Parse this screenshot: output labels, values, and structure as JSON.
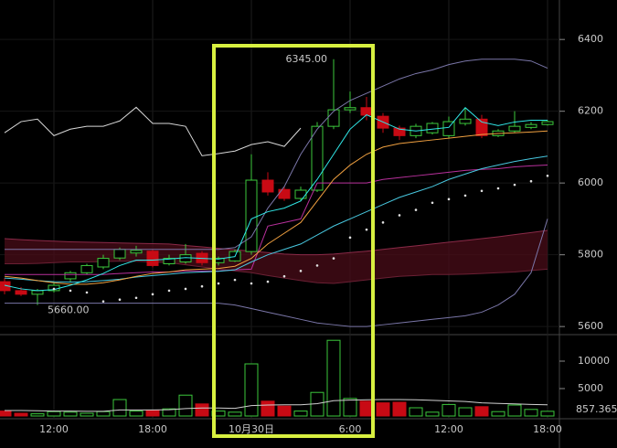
{
  "chart_data": {
    "type": "candlestick",
    "categories": [
      null,
      null,
      null,
      "12:00",
      null,
      null,
      null,
      null,
      null,
      "18:00",
      null,
      null,
      null,
      null,
      null,
      "10月30日",
      null,
      null,
      null,
      null,
      null,
      "6:00",
      null,
      null,
      null,
      null,
      null,
      "12:00",
      null,
      null,
      null,
      null,
      null,
      "18:00"
    ],
    "open": [
      5725,
      5700,
      5690,
      5700,
      5733,
      5750,
      5766,
      5791,
      5805,
      5810,
      5775,
      5780,
      5804,
      5778,
      5783,
      5809,
      6008,
      5982,
      5957,
      5980,
      6158,
      6204,
      6210,
      6186,
      6153,
      6132,
      6140,
      6132,
      6166,
      6178,
      6132,
      6145,
      6155,
      6163
    ],
    "high": [
      5735,
      5710,
      5705,
      5725,
      5755,
      5775,
      5800,
      5820,
      5825,
      5815,
      5800,
      5830,
      5810,
      5795,
      5815,
      6080,
      6030,
      5990,
      5990,
      6170,
      6345,
      6255,
      6240,
      6195,
      6160,
      6165,
      6170,
      6185,
      6210,
      6190,
      6150,
      6200,
      6170,
      6175
    ],
    "low": [
      5690,
      5685,
      5660,
      5695,
      5725,
      5745,
      5760,
      5785,
      5795,
      5765,
      5770,
      5775,
      5770,
      5770,
      5780,
      5800,
      5965,
      5950,
      5950,
      5975,
      6150,
      6195,
      6175,
      6140,
      6120,
      6125,
      6135,
      6125,
      6160,
      6125,
      6128,
      6140,
      6150,
      6160
    ],
    "close": [
      5700,
      5690,
      5700,
      5715,
      5750,
      5770,
      5790,
      5815,
      5812,
      5770,
      5790,
      5800,
      5778,
      5790,
      5809,
      6008,
      5975,
      5957,
      5980,
      6158,
      6204,
      6210,
      6189,
      6153,
      6132,
      6158,
      6166,
      6171,
      6178,
      6132,
      6145,
      6158,
      6163,
      6171
    ],
    "volume": [
      900,
      500,
      400,
      800,
      700,
      500,
      800,
      3000,
      900,
      1000,
      1300,
      3800,
      2200,
      900,
      700,
      9500,
      2700,
      1800,
      900,
      4300,
      13800,
      3200,
      2700,
      2400,
      2500,
      1500,
      700,
      2100,
      1500,
      1700,
      800,
      2000,
      1200,
      857.365
    ],
    "volume_ma": [
      1000,
      1000,
      950,
      900,
      900,
      850,
      850,
      1100,
      1100,
      1100,
      1150,
      1350,
      1450,
      1450,
      1400,
      1900,
      2000,
      2050,
      2050,
      2250,
      2800,
      2900,
      2950,
      3000,
      3000,
      2950,
      2850,
      2750,
      2650,
      2400,
      2300,
      2200,
      2100,
      2050
    ],
    "up_color": "#3cc83c",
    "down_color": "#c80a14",
    "ylim": [
      5580,
      6510
    ],
    "yticks": [
      5600,
      5800,
      6000,
      6200,
      6400
    ],
    "volume_ylim": [
      0,
      14500
    ],
    "volume_ticks": [
      5000,
      10000
    ],
    "high_label": "6345.00",
    "low_label": "5660.00",
    "cloud": {
      "color": "#4a0c18",
      "span_a": [
        5845,
        5842,
        5840,
        5838,
        5836,
        5835,
        5834,
        5833,
        5832,
        5831,
        5830,
        5826,
        5822,
        5818,
        5814,
        5810,
        5806,
        5802,
        5800,
        5800,
        5802,
        5806,
        5810,
        5815,
        5820,
        5825,
        5830,
        5835,
        5840,
        5845,
        5850,
        5856,
        5862,
        5868
      ],
      "span_b": [
        5775,
        5775,
        5776,
        5778,
        5780,
        5780,
        5781,
        5782,
        5782,
        5780,
        5778,
        5772,
        5766,
        5760,
        5755,
        5750,
        5742,
        5735,
        5728,
        5722,
        5720,
        5725,
        5730,
        5735,
        5740,
        5742,
        5745,
        5745,
        5746,
        5748,
        5750,
        5752,
        5756,
        5760
      ]
    },
    "lines": [
      {
        "color": "#d8d8d8",
        "values": [
          6140,
          6171,
          6178,
          6132,
          6150,
          6158,
          6158,
          6173,
          6211,
          6166,
          6166,
          6158,
          6076,
          6082,
          6089,
          6107,
          6115,
          6102,
          6153,
          null,
          null,
          null,
          null,
          null,
          null,
          null,
          null,
          null,
          null,
          null,
          null,
          null,
          null,
          null
        ]
      },
      {
        "color": "#7a76a8",
        "values": [
          5815,
          5815,
          5815,
          5815,
          5815,
          5815,
          5815,
          5815,
          5815,
          5815,
          5815,
          5815,
          5815,
          5815,
          5820,
          5850,
          5930,
          5990,
          6080,
          6150,
          6200,
          6230,
          6250,
          6270,
          6290,
          6305,
          6315,
          6330,
          6340,
          6345,
          6345,
          6345,
          6340,
          6320
        ]
      },
      {
        "color": "#7a76a8",
        "values": [
          5665,
          5665,
          5665,
          5665,
          5665,
          5665,
          5665,
          5665,
          5665,
          5665,
          5665,
          5665,
          5665,
          5665,
          5660,
          5650,
          5640,
          5630,
          5620,
          5610,
          5605,
          5600,
          5600,
          5605,
          5610,
          5615,
          5620,
          5625,
          5630,
          5640,
          5660,
          5690,
          5750,
          5900
        ]
      },
      {
        "color": "#b8309c",
        "values": [
          5745,
          5745,
          5745,
          5745,
          5745,
          5745,
          5745,
          5748,
          5750,
          5752,
          5752,
          5755,
          5755,
          5755,
          5758,
          5760,
          5880,
          5890,
          5900,
          6000,
          6000,
          6000,
          6000,
          6010,
          6015,
          6020,
          6025,
          6030,
          6035,
          6038,
          6040,
          6045,
          6048,
          6050
        ]
      },
      {
        "color": "#48c8e0",
        "values": [
          5735,
          5732,
          5728,
          5725,
          5724,
          5725,
          5728,
          5732,
          5738,
          5742,
          5746,
          5750,
          5752,
          5754,
          5758,
          5780,
          5800,
          5815,
          5830,
          5855,
          5880,
          5900,
          5920,
          5940,
          5960,
          5975,
          5990,
          6010,
          6025,
          6040,
          6050,
          6060,
          6068,
          6075
        ]
      },
      {
        "color": "#f0a040",
        "values": [
          5740,
          5735,
          5728,
          5722,
          5718,
          5718,
          5722,
          5730,
          5740,
          5748,
          5752,
          5758,
          5760,
          5762,
          5768,
          5790,
          5830,
          5860,
          5890,
          5950,
          6010,
          6050,
          6080,
          6100,
          6110,
          6115,
          6120,
          6125,
          6130,
          6135,
          6138,
          6140,
          6142,
          6145
        ]
      },
      {
        "color": "#30e8e8",
        "values": [
          5715,
          5705,
          5700,
          5703,
          5715,
          5730,
          5748,
          5770,
          5785,
          5785,
          5788,
          5792,
          5790,
          5788,
          5795,
          5900,
          5920,
          5930,
          5950,
          6010,
          6080,
          6150,
          6190,
          6170,
          6150,
          6145,
          6150,
          6155,
          6210,
          6170,
          6160,
          6170,
          6175,
          6175
        ]
      }
    ],
    "sar": {
      "color": "#e0e0e0",
      "values": [
        null,
        null,
        null,
        5705,
        5700,
        5695,
        5670,
        5675,
        5680,
        5690,
        5700,
        5705,
        5712,
        5720,
        5730,
        5720,
        5725,
        5740,
        5755,
        5770,
        5790,
        5848,
        5870,
        5890,
        5910,
        5925,
        5945,
        5955,
        5965,
        5978,
        5985,
        5995,
        6005,
        6020
      ]
    }
  }
}
